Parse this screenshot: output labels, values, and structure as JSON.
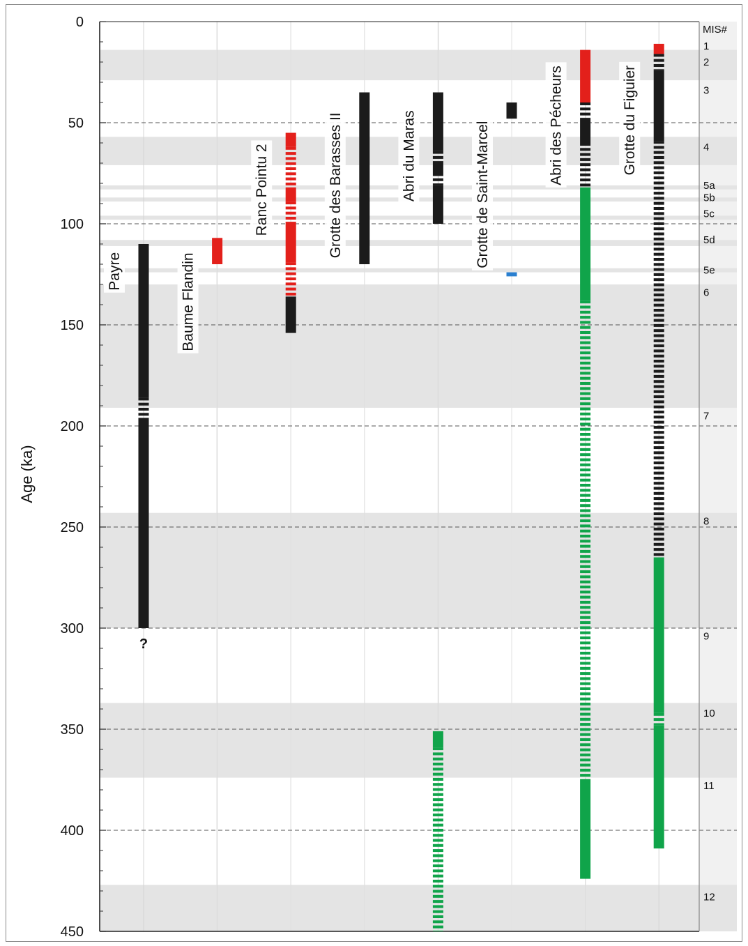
{
  "chart_data": {
    "type": "range",
    "ylabel": "Age (ka)",
    "xlabel": "",
    "title": "",
    "ylim": [
      0,
      450
    ],
    "yticks": [
      0,
      50,
      100,
      150,
      200,
      250,
      300,
      350,
      400,
      450
    ],
    "y_minor_step": 10,
    "y_gridlines_dashed": [
      50,
      100,
      150,
      200,
      250,
      300,
      350,
      400
    ],
    "grid": true,
    "colors": {
      "red": "#e3201b",
      "black": "#1b1b1b",
      "green": "#10a44a",
      "blue": "#2a7fd0",
      "band": "#e4e4e4",
      "strip": "#f1f1f1"
    },
    "mis": {
      "header": "MIS#",
      "bands": [
        {
          "start": 14,
          "end": 29
        },
        {
          "start": 57,
          "end": 71
        },
        {
          "start": 81,
          "end": 83
        },
        {
          "start": 87,
          "end": 89
        },
        {
          "start": 96,
          "end": 98
        },
        {
          "start": 108,
          "end": 111
        },
        {
          "start": 122,
          "end": 124
        },
        {
          "start": 130,
          "end": 191
        },
        {
          "start": 243,
          "end": 300
        },
        {
          "start": 337,
          "end": 374
        },
        {
          "start": 427,
          "end": 450
        }
      ],
      "labels": [
        {
          "text": "1",
          "age": 12
        },
        {
          "text": "2",
          "age": 20
        },
        {
          "text": "3",
          "age": 34
        },
        {
          "text": "4",
          "age": 62
        },
        {
          "text": "5a",
          "age": 81
        },
        {
          "text": "5b",
          "age": 87
        },
        {
          "text": "5c",
          "age": 95
        },
        {
          "text": "5d",
          "age": 108
        },
        {
          "text": "5e",
          "age": 123
        },
        {
          "text": "6",
          "age": 134
        },
        {
          "text": "7",
          "age": 195
        },
        {
          "text": "8",
          "age": 247
        },
        {
          "text": "9",
          "age": 304
        },
        {
          "text": "10",
          "age": 342
        },
        {
          "text": "11",
          "age": 378
        },
        {
          "text": "12",
          "age": 433
        }
      ]
    },
    "sites": [
      {
        "name": "Payre",
        "label_bottom_age": 133,
        "annotation": "?",
        "segments": [
          {
            "start": 110,
            "end": 186,
            "color": "black",
            "style": "solid"
          },
          {
            "start": 186,
            "end": 196,
            "color": "black",
            "style": "dashed"
          },
          {
            "start": 196,
            "end": 300,
            "color": "black",
            "style": "solid"
          }
        ]
      },
      {
        "name": "Baume Flandin",
        "label_bottom_age": 163,
        "segments": [
          {
            "start": 107,
            "end": 120,
            "color": "red",
            "style": "solid"
          }
        ]
      },
      {
        "name": "Ranc Pointu 2",
        "label_bottom_age": 106,
        "segments": [
          {
            "start": 55,
            "end": 62,
            "color": "red",
            "style": "solid"
          },
          {
            "start": 62,
            "end": 82,
            "color": "red",
            "style": "dashed"
          },
          {
            "start": 82,
            "end": 89,
            "color": "red",
            "style": "solid"
          },
          {
            "start": 89,
            "end": 99,
            "color": "red",
            "style": "dashed"
          },
          {
            "start": 99,
            "end": 119,
            "color": "red",
            "style": "solid"
          },
          {
            "start": 119,
            "end": 136,
            "color": "red",
            "style": "dashed"
          },
          {
            "start": 136,
            "end": 154,
            "color": "black",
            "style": "solid"
          }
        ]
      },
      {
        "name": "Grotte des Barasses II",
        "label_bottom_age": 117,
        "segments": [
          {
            "start": 35,
            "end": 120,
            "color": "black",
            "style": "solid"
          }
        ]
      },
      {
        "name": "Abri du Maras",
        "label_bottom_age": 89,
        "segments": [
          {
            "start": 35,
            "end": 64,
            "color": "black",
            "style": "solid"
          },
          {
            "start": 64,
            "end": 69,
            "color": "black",
            "style": "dashed"
          },
          {
            "start": 69,
            "end": 75,
            "color": "black",
            "style": "solid"
          },
          {
            "start": 75,
            "end": 81,
            "color": "black",
            "style": "dashed"
          },
          {
            "start": 81,
            "end": 100,
            "color": "black",
            "style": "solid"
          },
          {
            "start": 351,
            "end": 359,
            "color": "green",
            "style": "solid"
          },
          {
            "start": 359,
            "end": 450,
            "color": "green",
            "style": "dashed"
          }
        ]
      },
      {
        "name": "Grotte de Saint-Marcel",
        "label_bottom_age": 122,
        "segments": [
          {
            "start": 40,
            "end": 48,
            "color": "black",
            "style": "solid"
          },
          {
            "start": 124,
            "end": 126,
            "color": "blue",
            "style": "solid"
          }
        ]
      },
      {
        "name": "Abri des Pécheurs",
        "label_bottom_age": 81,
        "segments": [
          {
            "start": 14,
            "end": 40,
            "color": "red",
            "style": "solid"
          },
          {
            "start": 40,
            "end": 48,
            "color": "black",
            "style": "dashed"
          },
          {
            "start": 48,
            "end": 60,
            "color": "black",
            "style": "solid"
          },
          {
            "start": 60,
            "end": 82,
            "color": "black",
            "style": "dashed"
          },
          {
            "start": 82,
            "end": 138,
            "color": "green",
            "style": "solid"
          },
          {
            "start": 138,
            "end": 375,
            "color": "green",
            "style": "dashed"
          },
          {
            "start": 375,
            "end": 424,
            "color": "green",
            "style": "solid"
          }
        ]
      },
      {
        "name": "Grotte du Figuier",
        "label_bottom_age": 76,
        "segments": [
          {
            "start": 11,
            "end": 16,
            "color": "red",
            "style": "solid"
          },
          {
            "start": 16,
            "end": 24,
            "color": "black",
            "style": "dashed"
          },
          {
            "start": 24,
            "end": 59,
            "color": "black",
            "style": "solid"
          },
          {
            "start": 59,
            "end": 265,
            "color": "black",
            "style": "dashed"
          },
          {
            "start": 265,
            "end": 342,
            "color": "green",
            "style": "solid"
          },
          {
            "start": 342,
            "end": 348,
            "color": "green",
            "style": "dashed"
          },
          {
            "start": 348,
            "end": 409,
            "color": "green",
            "style": "solid"
          }
        ]
      }
    ]
  }
}
